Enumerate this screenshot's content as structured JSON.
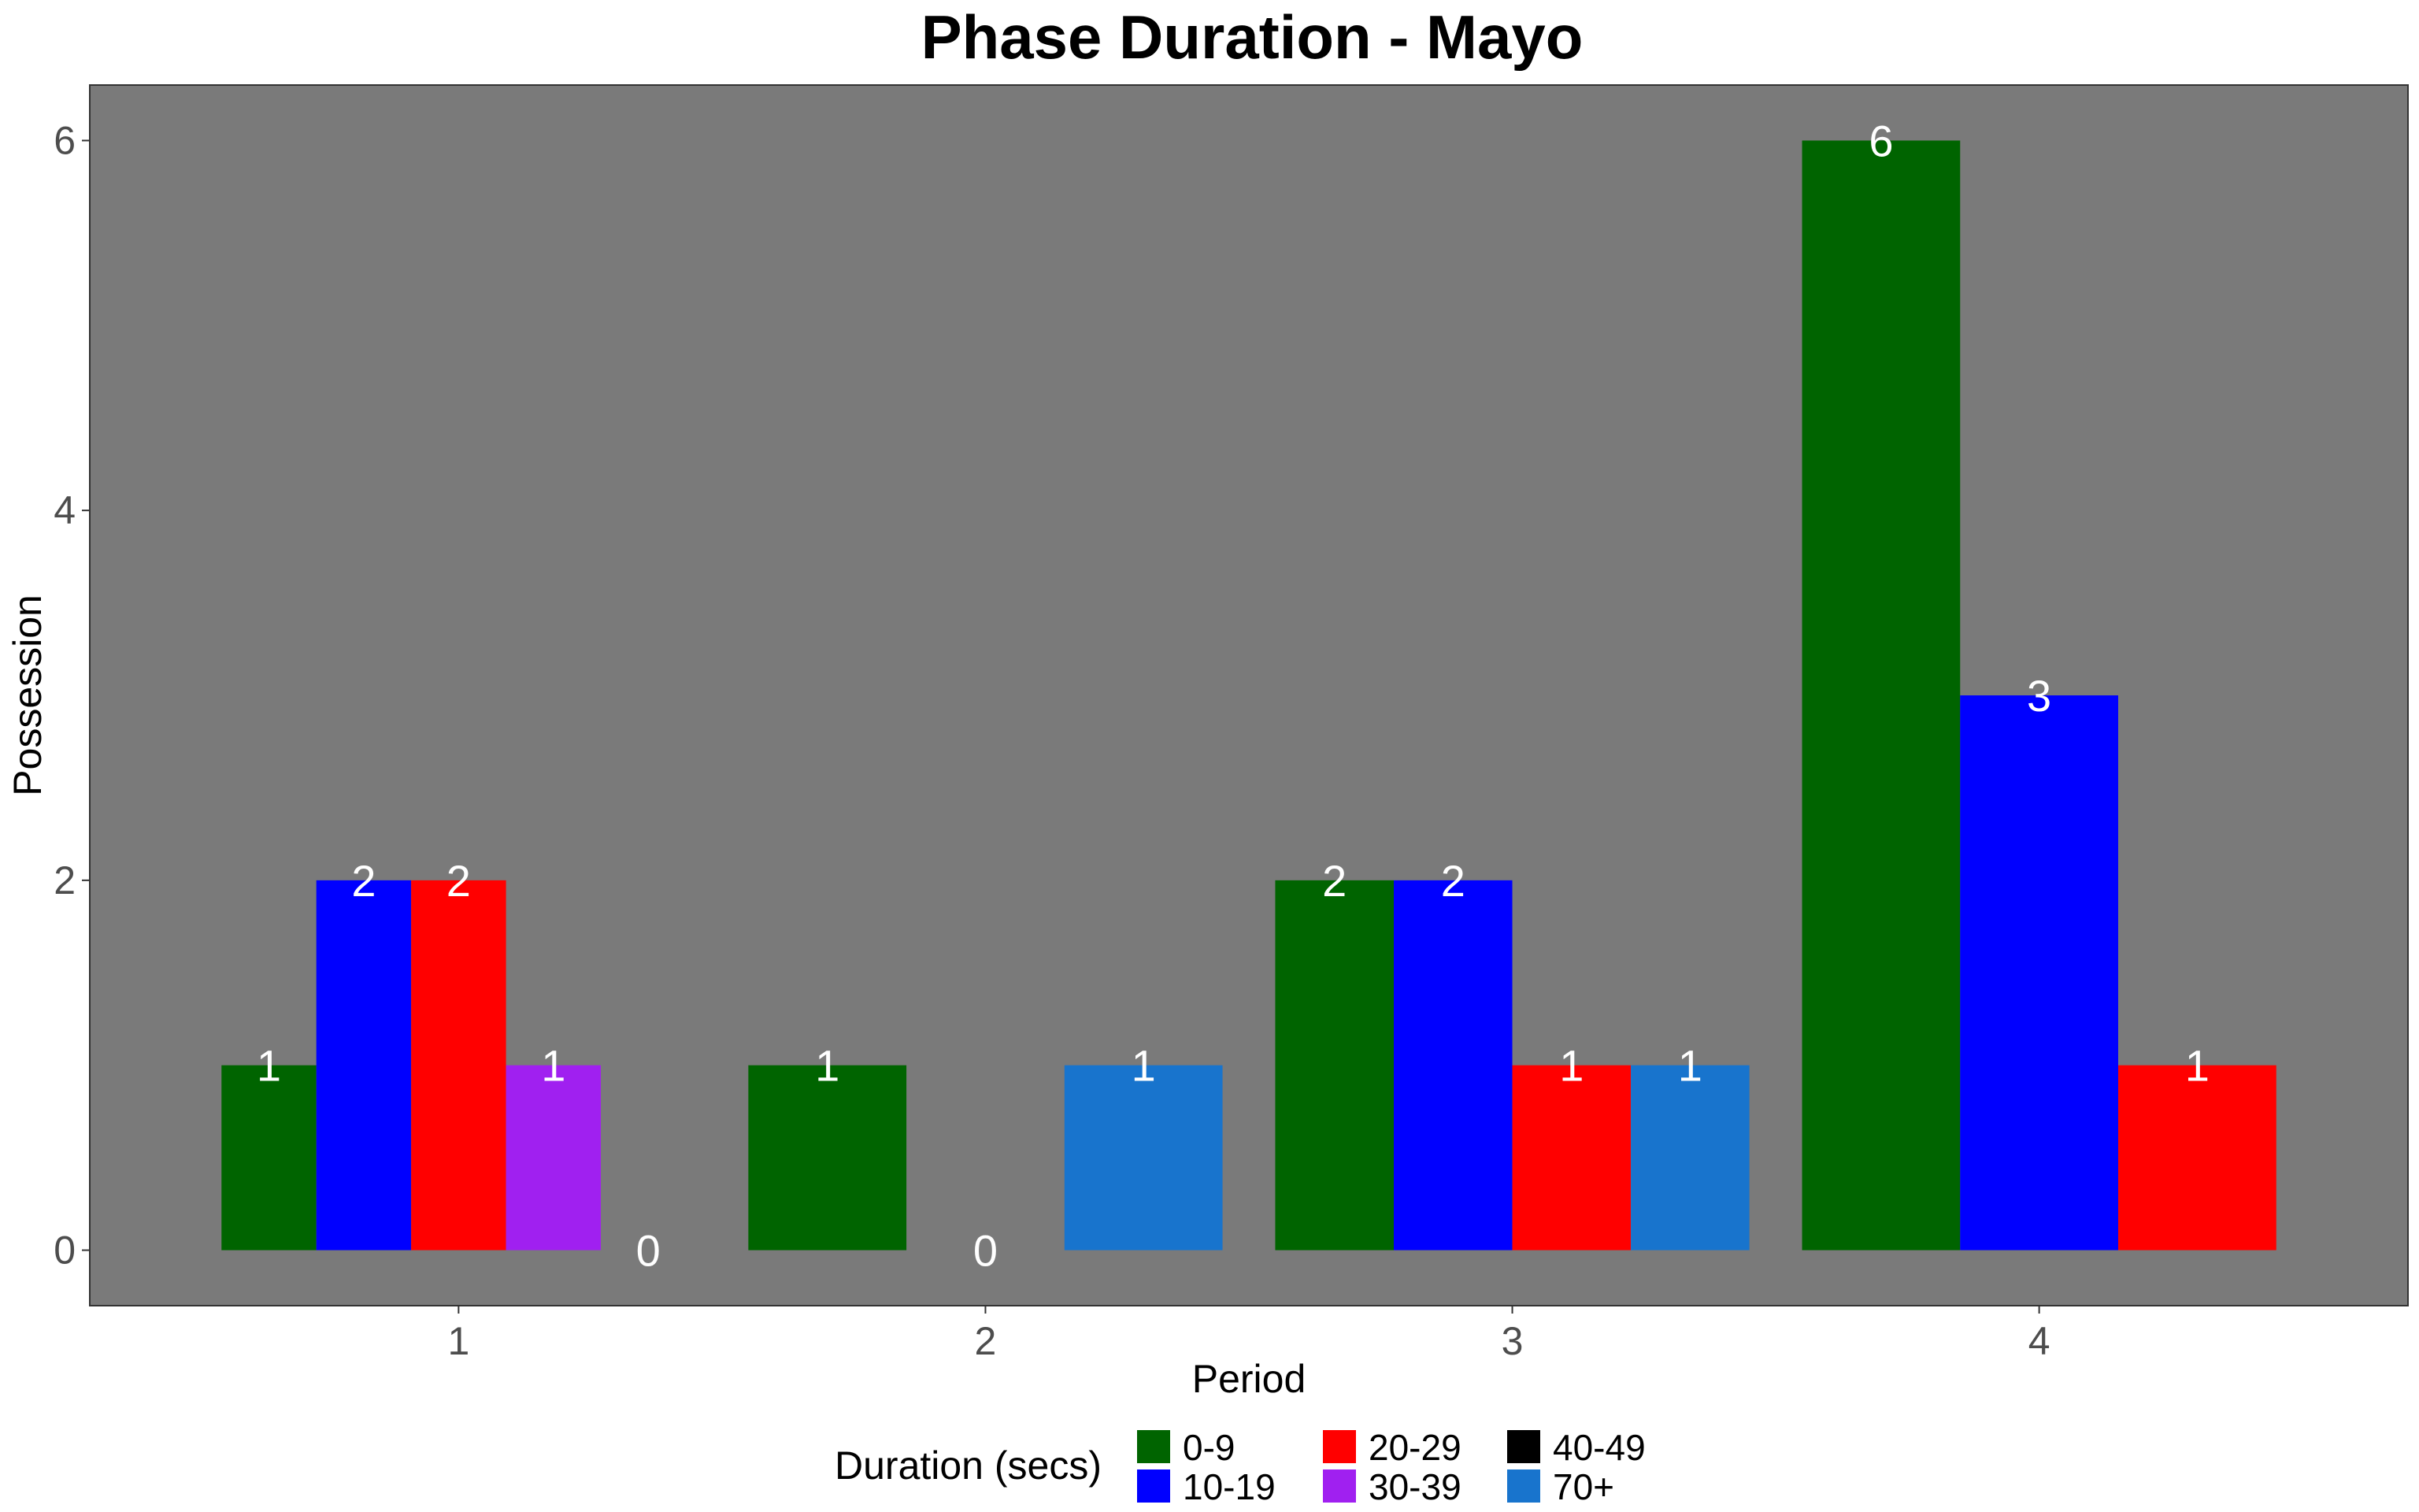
{
  "chart_data": {
    "type": "bar",
    "title": "Phase Duration - Mayo",
    "xlabel": "Period",
    "ylabel": "Possession",
    "categories": [
      "1",
      "2",
      "3",
      "4"
    ],
    "y_ticks": [
      "0",
      "2",
      "4",
      "6"
    ],
    "ylim": [
      -0.3,
      6.3
    ],
    "grid": false,
    "legend": {
      "title": "Duration (secs)",
      "placement": "bottom",
      "entries": [
        {
          "name": "0-9",
          "color": "#006400"
        },
        {
          "name": "10-19",
          "color": "#0000FF"
        },
        {
          "name": "20-29",
          "color": "#FF0000"
        },
        {
          "name": "30-39",
          "color": "#A020F0"
        },
        {
          "name": "40-49",
          "color": "#000000"
        },
        {
          "name": "70+",
          "color": "#1874CD"
        }
      ]
    },
    "colors": {
      "panel_background": "#7a7a7a",
      "page_background": "#ffffff"
    },
    "groups": [
      {
        "category": "1",
        "bars": [
          {
            "series": "0-9",
            "value": 1
          },
          {
            "series": "10-19",
            "value": 2
          },
          {
            "series": "20-29",
            "value": 2
          },
          {
            "series": "30-39",
            "value": 1
          },
          {
            "series": "40-49",
            "value": 0
          }
        ]
      },
      {
        "category": "2",
        "bars": [
          {
            "series": "0-9",
            "value": 1
          },
          {
            "series": "40-49",
            "value": 0
          },
          {
            "series": "70+",
            "value": 1
          }
        ]
      },
      {
        "category": "3",
        "bars": [
          {
            "series": "0-9",
            "value": 2
          },
          {
            "series": "10-19",
            "value": 2
          },
          {
            "series": "20-29",
            "value": 1
          },
          {
            "series": "70+",
            "value": 1
          }
        ]
      },
      {
        "category": "4",
        "bars": [
          {
            "series": "0-9",
            "value": 6
          },
          {
            "series": "10-19",
            "value": 3
          },
          {
            "series": "20-29",
            "value": 1
          }
        ]
      }
    ]
  }
}
